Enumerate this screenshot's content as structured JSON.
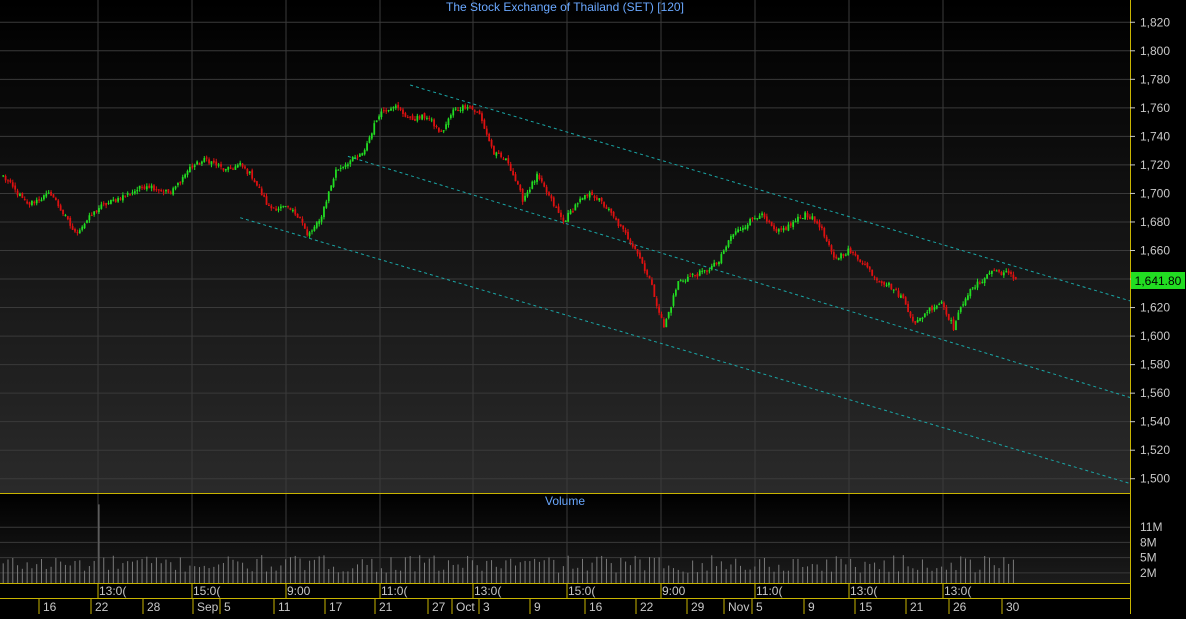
{
  "colors": {
    "background": "#000000",
    "up_candle": "#22dd22",
    "down_candle": "#dd1111",
    "trendline": "#1aa6a6",
    "title": "#6aa8ff",
    "axis_text": "#c8c8c8",
    "separator": "#c8b400",
    "price_badge": "#22dd22",
    "volume_bar": "#7a7a7a"
  },
  "chart_data": [
    {
      "type": "candlestick",
      "title": "The Stock Exchange of Thailand (SET) [120]",
      "ylim": [
        1490,
        1830
      ],
      "y_ticks": [
        "1,820",
        "1,800",
        "1,780",
        "1,760",
        "1,740",
        "1,720",
        "1,700",
        "1,680",
        "1,660",
        "1,640",
        "1,620",
        "1,600",
        "1,580",
        "1,560",
        "1,540",
        "1,520",
        "1,500"
      ],
      "last_price": "1,641.80",
      "grid": true,
      "ohlc_anchors": [
        [
          0,
          1712
        ],
        [
          10,
          1692
        ],
        [
          20,
          1700
        ],
        [
          30,
          1672
        ],
        [
          40,
          1690
        ],
        [
          50,
          1698
        ],
        [
          60,
          1706
        ],
        [
          70,
          1700
        ],
        [
          78,
          1718
        ],
        [
          85,
          1724
        ],
        [
          93,
          1716
        ],
        [
          99,
          1720
        ],
        [
          104,
          1712
        ],
        [
          111,
          1690
        ],
        [
          118,
          1690
        ],
        [
          124,
          1684
        ],
        [
          127,
          1670
        ],
        [
          132,
          1680
        ],
        [
          139,
          1716
        ],
        [
          144,
          1722
        ],
        [
          150,
          1727
        ],
        [
          157,
          1756
        ],
        [
          163,
          1762
        ],
        [
          170,
          1752
        ],
        [
          177,
          1754
        ],
        [
          183,
          1742
        ],
        [
          188,
          1758
        ],
        [
          194,
          1762
        ],
        [
          199,
          1755
        ],
        [
          205,
          1728
        ],
        [
          211,
          1722
        ],
        [
          217,
          1696
        ],
        [
          223,
          1712
        ],
        [
          228,
          1698
        ],
        [
          234,
          1680
        ],
        [
          240,
          1694
        ],
        [
          246,
          1700
        ],
        [
          252,
          1690
        ],
        [
          258,
          1676
        ],
        [
          264,
          1662
        ],
        [
          270,
          1640
        ],
        [
          276,
          1606
        ],
        [
          282,
          1638
        ],
        [
          287,
          1642
        ],
        [
          293,
          1645
        ],
        [
          299,
          1652
        ],
        [
          304,
          1670
        ],
        [
          310,
          1678
        ],
        [
          316,
          1686
        ],
        [
          323,
          1672
        ],
        [
          329,
          1678
        ],
        [
          335,
          1686
        ],
        [
          341,
          1678
        ],
        [
          347,
          1654
        ],
        [
          353,
          1660
        ],
        [
          359,
          1652
        ],
        [
          365,
          1640
        ],
        [
          370,
          1636
        ],
        [
          376,
          1626
        ],
        [
          381,
          1608
        ],
        [
          386,
          1618
        ],
        [
          392,
          1624
        ],
        [
          397,
          1606
        ],
        [
          402,
          1628
        ],
        [
          408,
          1638
        ],
        [
          413,
          1646
        ],
        [
          419,
          1644
        ],
        [
          423,
          1640
        ]
      ],
      "trendlines": [
        {
          "from": [
            170,
            1776
          ],
          "to": [
            488,
            1616
          ]
        },
        {
          "from": [
            144,
            1726
          ],
          "to": [
            488,
            1548
          ]
        },
        {
          "from": [
            99,
            1683
          ],
          "to": [
            488,
            1488
          ]
        }
      ]
    },
    {
      "type": "bar",
      "title": "Volume",
      "y_ticks": [
        "11M",
        "8M",
        "5M",
        "2M"
      ],
      "ylim": [
        0,
        14
      ],
      "spike": {
        "index": 40,
        "value": 15.5
      }
    }
  ],
  "time_axis": {
    "upper_labels": [
      "13:0(",
      "15:0(",
      "9:00",
      "11:0(",
      "13:0(",
      "15:0(",
      "9:00",
      "11:0(",
      "13:0(",
      "13:0("
    ],
    "lower_labels": [
      "16",
      "22",
      "28",
      "Sep",
      "5",
      "11",
      "17",
      "21",
      "27",
      "Oct",
      "3",
      "9",
      "16",
      "22",
      "29",
      "Nov",
      "5",
      "9",
      "15",
      "21",
      "26",
      "30"
    ]
  }
}
